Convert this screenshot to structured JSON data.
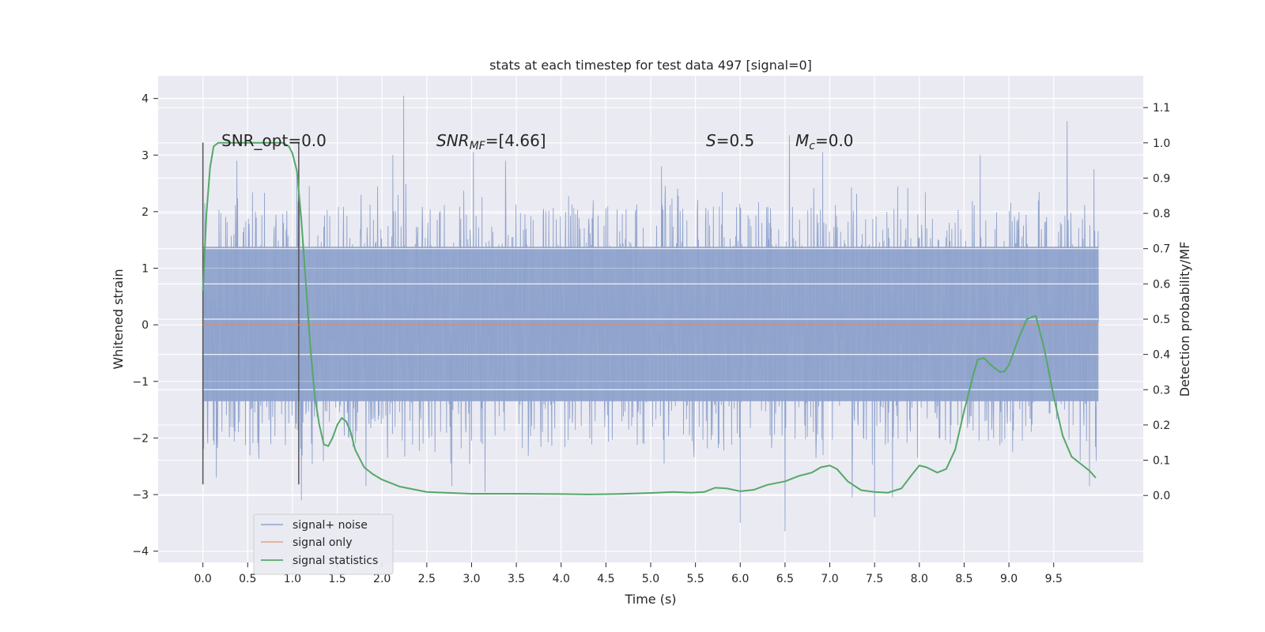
{
  "chart_data": {
    "type": "line",
    "title": "stats at each timestep for test data 497 [signal=0]",
    "xlabel": "Time (s)",
    "ylabel": "Whitened strain",
    "y2label": "Detection probability/MF",
    "xlim": [
      -0.5,
      10.5
    ],
    "ylim": [
      -4.2,
      4.4
    ],
    "y2lim": [
      -0.19,
      1.19
    ],
    "xticks": [
      0.0,
      0.5,
      1.0,
      1.5,
      2.0,
      2.5,
      3.0,
      3.5,
      4.0,
      4.5,
      5.0,
      5.5,
      6.0,
      6.5,
      7.0,
      7.5,
      8.0,
      8.5,
      9.0,
      9.5
    ],
    "xtick_labels": [
      "0.0",
      "0.5",
      "1.0",
      "1.5",
      "2.0",
      "2.5",
      "3.0",
      "3.5",
      "4.0",
      "4.5",
      "5.0",
      "5.5",
      "6.0",
      "6.5",
      "7.0",
      "7.5",
      "8.0",
      "8.5",
      "9.0",
      "9.5"
    ],
    "yticks": [
      -4,
      -3,
      -2,
      -1,
      0,
      1,
      2,
      3,
      4
    ],
    "ytick_labels": [
      "−4",
      "−3",
      "−2",
      "−1",
      "0",
      "1",
      "2",
      "3",
      "4"
    ],
    "y2ticks": [
      0.0,
      0.1,
      0.2,
      0.3,
      0.4,
      0.5,
      0.6,
      0.7,
      0.8,
      0.9,
      1.0,
      1.1
    ],
    "y2tick_labels": [
      "0.0",
      "0.1",
      "0.2",
      "0.3",
      "0.4",
      "0.5",
      "0.6",
      "0.7",
      "0.8",
      "0.9",
      "1.0",
      "1.1"
    ],
    "grid": true,
    "legend_position": "lower-left",
    "annotations": {
      "snr_opt": "SNR_opt=0.0",
      "snr_mf_prefix": "SNR",
      "snr_mf_sub": "MF",
      "snr_mf_value": "=[4.66]",
      "s_var": "S",
      "s_value": "=0.5",
      "mc_var": "M",
      "mc_sub": "c",
      "mc_value": "=0.0"
    },
    "vertical_lines": [
      0.0,
      1.07
    ],
    "vline_range": [
      -2.82,
      3.22
    ],
    "series": [
      {
        "name": "signal+ noise",
        "color": "#8fa3cc",
        "duration": 10.0,
        "noise_band": [
          -1.35,
          1.38
        ],
        "peaks_upper": [
          {
            "x": 0.02,
            "y": 2.15
          },
          {
            "x": 0.38,
            "y": 2.9
          },
          {
            "x": 1.05,
            "y": 2.75
          },
          {
            "x": 2.12,
            "y": 3.0
          },
          {
            "x": 2.24,
            "y": 4.05
          },
          {
            "x": 3.02,
            "y": 3.05
          },
          {
            "x": 3.38,
            "y": 2.9
          },
          {
            "x": 5.12,
            "y": 2.8
          },
          {
            "x": 6.55,
            "y": 3.35
          },
          {
            "x": 6.92,
            "y": 3.05
          },
          {
            "x": 8.68,
            "y": 3.0
          },
          {
            "x": 9.65,
            "y": 3.6
          },
          {
            "x": 9.95,
            "y": 2.75
          }
        ],
        "peaks_lower": [
          {
            "x": 0.15,
            "y": -2.7
          },
          {
            "x": 1.1,
            "y": -3.1
          },
          {
            "x": 1.82,
            "y": -2.85
          },
          {
            "x": 2.78,
            "y": -2.85
          },
          {
            "x": 3.15,
            "y": -2.95
          },
          {
            "x": 6.0,
            "y": -3.5
          },
          {
            "x": 6.5,
            "y": -3.65
          },
          {
            "x": 7.25,
            "y": -3.05
          },
          {
            "x": 7.5,
            "y": -3.4
          },
          {
            "x": 7.7,
            "y": -3.05
          },
          {
            "x": 9.9,
            "y": -2.85
          }
        ]
      },
      {
        "name": "signal only",
        "color": "#dd8452",
        "x": [
          0,
          10
        ],
        "y": [
          0,
          0
        ]
      },
      {
        "name": "signal statistics",
        "color": "#55a868",
        "axis": "right",
        "x": [
          0.0,
          0.04,
          0.08,
          0.12,
          0.17,
          0.25,
          0.35,
          0.5,
          0.65,
          0.8,
          0.9,
          0.96,
          1.0,
          1.05,
          1.1,
          1.15,
          1.2,
          1.25,
          1.3,
          1.35,
          1.4,
          1.45,
          1.5,
          1.55,
          1.6,
          1.65,
          1.7,
          1.8,
          1.9,
          2.0,
          2.2,
          2.5,
          3.0,
          3.5,
          4.0,
          4.3,
          4.6,
          5.0,
          5.25,
          5.45,
          5.6,
          5.72,
          5.85,
          6.0,
          6.15,
          6.3,
          6.5,
          6.65,
          6.8,
          6.9,
          7.0,
          7.08,
          7.2,
          7.35,
          7.5,
          7.65,
          7.8,
          7.92,
          8.0,
          8.08,
          8.2,
          8.3,
          8.4,
          8.5,
          8.6,
          8.65,
          8.72,
          8.8,
          8.9,
          8.95,
          9.0,
          9.1,
          9.2,
          9.3,
          9.4,
          9.5,
          9.6,
          9.7,
          9.8,
          9.9,
          9.97
        ],
        "y": [
          0.58,
          0.8,
          0.93,
          0.99,
          1.0,
          1.0,
          1.0,
          1.0,
          1.0,
          1.0,
          1.0,
          0.99,
          0.97,
          0.92,
          0.78,
          0.6,
          0.42,
          0.28,
          0.2,
          0.145,
          0.14,
          0.165,
          0.2,
          0.22,
          0.21,
          0.18,
          0.13,
          0.08,
          0.06,
          0.045,
          0.025,
          0.01,
          0.005,
          0.005,
          0.004,
          0.003,
          0.004,
          0.007,
          0.01,
          0.008,
          0.01,
          0.022,
          0.02,
          0.012,
          0.016,
          0.03,
          0.04,
          0.055,
          0.065,
          0.08,
          0.085,
          0.075,
          0.04,
          0.015,
          0.01,
          0.008,
          0.02,
          0.06,
          0.085,
          0.08,
          0.065,
          0.075,
          0.13,
          0.24,
          0.34,
          0.385,
          0.39,
          0.37,
          0.35,
          0.352,
          0.37,
          0.44,
          0.5,
          0.51,
          0.41,
          0.28,
          0.17,
          0.11,
          0.09,
          0.07,
          0.05
        ]
      }
    ]
  }
}
